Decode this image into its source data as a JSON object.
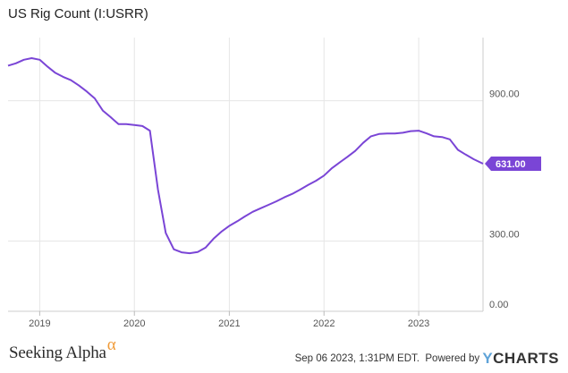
{
  "header": {
    "title": "US Rig Count (I:USRR)"
  },
  "footer": {
    "brand": "Seeking Alpha",
    "brand_symbol": "α",
    "timestamp": "Sep 06 2023, 1:31PM EDT.",
    "powered_by": "Powered by",
    "provider_y": "Y",
    "provider_rest": "CHARTS"
  },
  "colors": {
    "line": "#7a45d6",
    "badge": "#7a45d6",
    "grid": "#e6e6e6",
    "footer_alpha": "#f09a36"
  },
  "chart_data": {
    "type": "line",
    "title": "US Rig Count (I:USRR)",
    "xlabel": "",
    "ylabel": "",
    "x_tick_labels": [
      "2019",
      "2020",
      "2021",
      "2022",
      "2023"
    ],
    "x_ticks": [
      "2019-01-01",
      "2020-01-01",
      "2021-01-01",
      "2022-01-01",
      "2023-01-01"
    ],
    "y_tick_labels": [
      "0.00",
      "300.00",
      "900.00"
    ],
    "y_ticks": [
      0,
      300,
      900
    ],
    "ylim": [
      0,
      1170
    ],
    "xlim": [
      "2018-09-01",
      "2023-09-06"
    ],
    "grid": true,
    "last_value_label": "631.00",
    "series": [
      {
        "name": "",
        "x": [
          "2018-09-01",
          "2018-10-01",
          "2018-11-01",
          "2018-12-01",
          "2019-01-01",
          "2019-02-01",
          "2019-03-01",
          "2019-04-01",
          "2019-05-01",
          "2019-06-01",
          "2019-07-01",
          "2019-08-01",
          "2019-09-01",
          "2019-10-01",
          "2019-11-01",
          "2019-12-01",
          "2020-01-01",
          "2020-02-01",
          "2020-03-01",
          "2020-04-01",
          "2020-05-01",
          "2020-06-01",
          "2020-07-01",
          "2020-08-01",
          "2020-09-01",
          "2020-10-01",
          "2020-11-01",
          "2020-12-01",
          "2021-01-01",
          "2021-02-01",
          "2021-03-01",
          "2021-04-01",
          "2021-05-01",
          "2021-06-01",
          "2021-07-01",
          "2021-08-01",
          "2021-09-01",
          "2021-10-01",
          "2021-11-01",
          "2021-12-01",
          "2022-01-01",
          "2022-02-01",
          "2022-03-01",
          "2022-04-01",
          "2022-05-01",
          "2022-06-01",
          "2022-07-01",
          "2022-08-01",
          "2022-09-01",
          "2022-10-01",
          "2022-11-01",
          "2022-12-01",
          "2023-01-01",
          "2023-02-01",
          "2023-03-01",
          "2023-04-01",
          "2023-05-01",
          "2023-06-01",
          "2023-07-01",
          "2023-08-01",
          "2023-09-06"
        ],
        "values": [
          1050,
          1060,
          1075,
          1082,
          1075,
          1045,
          1020,
          1002,
          988,
          965,
          940,
          910,
          858,
          830,
          800,
          800,
          796,
          792,
          772,
          520,
          335,
          265,
          252,
          248,
          253,
          272,
          310,
          340,
          365,
          385,
          405,
          425,
          440,
          455,
          470,
          487,
          502,
          520,
          540,
          558,
          580,
          612,
          635,
          660,
          685,
          720,
          748,
          758,
          760,
          760,
          763,
          770,
          772,
          760,
          748,
          745,
          735,
          690,
          670,
          650,
          631
        ]
      }
    ]
  }
}
